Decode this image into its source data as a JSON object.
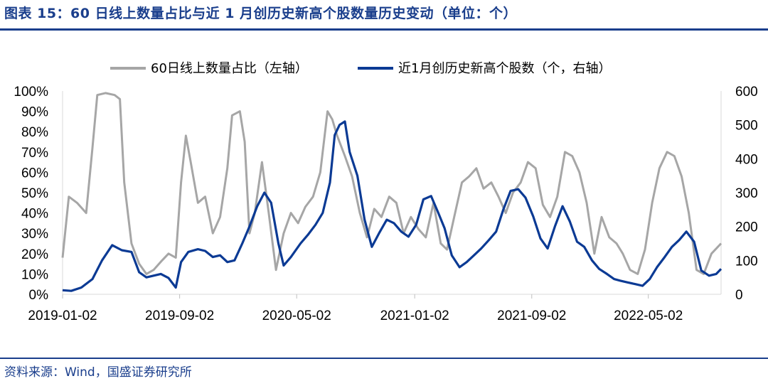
{
  "title": "图表 15：60 日线上数量占比与近 1 月创历史新高个股数量历史变动（单位：个）",
  "source": "资料来源：Wind，国盛证券研究所",
  "colors": {
    "series1": "#a6a6a6",
    "series2": "#0b3a94",
    "brand": "#1a3e8c"
  },
  "chart_data": {
    "type": "line",
    "legend_position": "top",
    "grid": false,
    "x_ticks": [
      "2019-01-02",
      "2019-09-02",
      "2020-05-02",
      "2021-01-02",
      "2021-09-02",
      "2022-05-02"
    ],
    "x_range": [
      "2019-01-02",
      "2022-09-30"
    ],
    "y_left": {
      "ticks": [
        "0%",
        "10%",
        "20%",
        "30%",
        "40%",
        "50%",
        "60%",
        "70%",
        "80%",
        "90%",
        "100%"
      ],
      "range": [
        0,
        100
      ]
    },
    "y_right": {
      "ticks": [
        "0",
        "100",
        "200",
        "300",
        "400",
        "500",
        "600"
      ],
      "range": [
        0,
        600
      ]
    },
    "series": [
      {
        "name": "60日线上数量占比（左轴）",
        "axis": "left",
        "unit": "%",
        "points": [
          [
            "2019-01-02",
            18
          ],
          [
            "2019-01-15",
            48
          ],
          [
            "2019-02-01",
            45
          ],
          [
            "2019-02-20",
            40
          ],
          [
            "2019-03-05",
            72
          ],
          [
            "2019-03-15",
            98
          ],
          [
            "2019-04-01",
            99
          ],
          [
            "2019-04-20",
            98
          ],
          [
            "2019-05-01",
            96
          ],
          [
            "2019-05-10",
            55
          ],
          [
            "2019-05-25",
            25
          ],
          [
            "2019-06-10",
            15
          ],
          [
            "2019-06-25",
            10
          ],
          [
            "2019-07-10",
            12
          ],
          [
            "2019-07-25",
            16
          ],
          [
            "2019-08-10",
            20
          ],
          [
            "2019-08-25",
            18
          ],
          [
            "2019-09-05",
            55
          ],
          [
            "2019-09-15",
            78
          ],
          [
            "2019-09-25",
            65
          ],
          [
            "2019-10-10",
            45
          ],
          [
            "2019-10-25",
            48
          ],
          [
            "2019-11-10",
            30
          ],
          [
            "2019-11-25",
            38
          ],
          [
            "2019-12-10",
            62
          ],
          [
            "2019-12-20",
            88
          ],
          [
            "2020-01-05",
            90
          ],
          [
            "2020-01-15",
            75
          ],
          [
            "2020-01-25",
            30
          ],
          [
            "2020-02-05",
            40
          ],
          [
            "2020-02-20",
            65
          ],
          [
            "2020-03-05",
            40
          ],
          [
            "2020-03-20",
            12
          ],
          [
            "2020-04-05",
            30
          ],
          [
            "2020-04-20",
            40
          ],
          [
            "2020-05-05",
            35
          ],
          [
            "2020-05-20",
            43
          ],
          [
            "2020-06-05",
            48
          ],
          [
            "2020-06-20",
            60
          ],
          [
            "2020-07-05",
            90
          ],
          [
            "2020-07-15",
            86
          ],
          [
            "2020-07-25",
            78
          ],
          [
            "2020-08-10",
            68
          ],
          [
            "2020-08-25",
            58
          ],
          [
            "2020-09-10",
            40
          ],
          [
            "2020-09-25",
            28
          ],
          [
            "2020-10-10",
            42
          ],
          [
            "2020-10-25",
            38
          ],
          [
            "2020-11-10",
            48
          ],
          [
            "2020-11-25",
            45
          ],
          [
            "2020-12-10",
            30
          ],
          [
            "2020-12-25",
            38
          ],
          [
            "2021-01-10",
            32
          ],
          [
            "2021-01-25",
            28
          ],
          [
            "2021-02-10",
            45
          ],
          [
            "2021-02-25",
            25
          ],
          [
            "2021-03-10",
            22
          ],
          [
            "2021-03-25",
            38
          ],
          [
            "2021-04-10",
            55
          ],
          [
            "2021-04-25",
            58
          ],
          [
            "2021-05-10",
            62
          ],
          [
            "2021-05-25",
            52
          ],
          [
            "2021-06-10",
            55
          ],
          [
            "2021-06-25",
            48
          ],
          [
            "2021-07-10",
            40
          ],
          [
            "2021-07-25",
            50
          ],
          [
            "2021-08-10",
            55
          ],
          [
            "2021-08-25",
            65
          ],
          [
            "2021-09-10",
            62
          ],
          [
            "2021-09-25",
            44
          ],
          [
            "2021-10-10",
            38
          ],
          [
            "2021-10-25",
            48
          ],
          [
            "2021-11-10",
            70
          ],
          [
            "2021-11-25",
            68
          ],
          [
            "2021-12-10",
            60
          ],
          [
            "2021-12-25",
            45
          ],
          [
            "2022-01-10",
            20
          ],
          [
            "2022-01-25",
            38
          ],
          [
            "2022-02-10",
            28
          ],
          [
            "2022-02-25",
            25
          ],
          [
            "2022-03-10",
            20
          ],
          [
            "2022-03-25",
            12
          ],
          [
            "2022-04-10",
            10
          ],
          [
            "2022-04-25",
            22
          ],
          [
            "2022-05-10",
            45
          ],
          [
            "2022-05-25",
            62
          ],
          [
            "2022-06-10",
            70
          ],
          [
            "2022-06-25",
            68
          ],
          [
            "2022-07-10",
            58
          ],
          [
            "2022-07-25",
            40
          ],
          [
            "2022-08-10",
            12
          ],
          [
            "2022-08-25",
            10
          ],
          [
            "2022-09-10",
            20
          ],
          [
            "2022-09-30",
            25
          ]
        ]
      },
      {
        "name": "近1月创历史新高个股数（个，右轴）",
        "axis": "right",
        "unit": "个",
        "points": [
          [
            "2019-01-02",
            12
          ],
          [
            "2019-01-20",
            10
          ],
          [
            "2019-02-10",
            20
          ],
          [
            "2019-03-05",
            45
          ],
          [
            "2019-03-25",
            100
          ],
          [
            "2019-04-15",
            145
          ],
          [
            "2019-05-05",
            130
          ],
          [
            "2019-05-25",
            125
          ],
          [
            "2019-06-10",
            65
          ],
          [
            "2019-06-25",
            50
          ],
          [
            "2019-07-10",
            55
          ],
          [
            "2019-07-25",
            60
          ],
          [
            "2019-08-10",
            48
          ],
          [
            "2019-08-25",
            20
          ],
          [
            "2019-09-05",
            95
          ],
          [
            "2019-09-20",
            125
          ],
          [
            "2019-10-10",
            133
          ],
          [
            "2019-10-25",
            128
          ],
          [
            "2019-11-10",
            110
          ],
          [
            "2019-11-25",
            115
          ],
          [
            "2019-12-10",
            95
          ],
          [
            "2019-12-25",
            100
          ],
          [
            "2020-01-10",
            150
          ],
          [
            "2020-01-25",
            200
          ],
          [
            "2020-02-10",
            260
          ],
          [
            "2020-02-25",
            300
          ],
          [
            "2020-03-10",
            270
          ],
          [
            "2020-03-25",
            150
          ],
          [
            "2020-04-05",
            85
          ],
          [
            "2020-04-20",
            110
          ],
          [
            "2020-05-10",
            150
          ],
          [
            "2020-05-25",
            175
          ],
          [
            "2020-06-10",
            205
          ],
          [
            "2020-06-25",
            240
          ],
          [
            "2020-07-10",
            330
          ],
          [
            "2020-07-20",
            470
          ],
          [
            "2020-07-30",
            500
          ],
          [
            "2020-08-10",
            510
          ],
          [
            "2020-08-20",
            420
          ],
          [
            "2020-09-05",
            350
          ],
          [
            "2020-09-20",
            220
          ],
          [
            "2020-10-05",
            140
          ],
          [
            "2020-10-20",
            180
          ],
          [
            "2020-11-05",
            220
          ],
          [
            "2020-11-20",
            210
          ],
          [
            "2020-12-05",
            185
          ],
          [
            "2020-12-20",
            170
          ],
          [
            "2021-01-05",
            205
          ],
          [
            "2021-01-20",
            280
          ],
          [
            "2021-02-05",
            290
          ],
          [
            "2021-02-20",
            240
          ],
          [
            "2021-03-05",
            195
          ],
          [
            "2021-03-20",
            115
          ],
          [
            "2021-04-05",
            80
          ],
          [
            "2021-04-20",
            95
          ],
          [
            "2021-05-05",
            115
          ],
          [
            "2021-05-20",
            135
          ],
          [
            "2021-06-05",
            160
          ],
          [
            "2021-06-20",
            185
          ],
          [
            "2021-07-05",
            250
          ],
          [
            "2021-07-20",
            305
          ],
          [
            "2021-08-05",
            310
          ],
          [
            "2021-08-20",
            285
          ],
          [
            "2021-09-05",
            230
          ],
          [
            "2021-09-20",
            165
          ],
          [
            "2021-10-05",
            135
          ],
          [
            "2021-10-20",
            200
          ],
          [
            "2021-11-05",
            260
          ],
          [
            "2021-11-20",
            215
          ],
          [
            "2021-12-05",
            155
          ],
          [
            "2021-12-20",
            140
          ],
          [
            "2022-01-05",
            100
          ],
          [
            "2022-01-20",
            75
          ],
          [
            "2022-02-05",
            60
          ],
          [
            "2022-02-20",
            45
          ],
          [
            "2022-03-05",
            40
          ],
          [
            "2022-03-20",
            35
          ],
          [
            "2022-04-05",
            30
          ],
          [
            "2022-04-20",
            25
          ],
          [
            "2022-05-05",
            45
          ],
          [
            "2022-05-20",
            80
          ],
          [
            "2022-06-05",
            110
          ],
          [
            "2022-06-20",
            140
          ],
          [
            "2022-07-05",
            160
          ],
          [
            "2022-07-20",
            185
          ],
          [
            "2022-08-05",
            155
          ],
          [
            "2022-08-20",
            70
          ],
          [
            "2022-09-05",
            55
          ],
          [
            "2022-09-20",
            60
          ],
          [
            "2022-09-30",
            75
          ]
        ]
      }
    ]
  }
}
